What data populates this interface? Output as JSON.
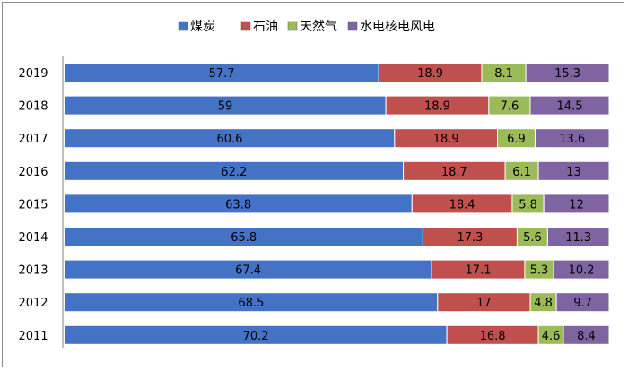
{
  "chart_data": {
    "type": "bar",
    "orientation": "horizontal",
    "stacked": true,
    "categories": [
      "2019",
      "2018",
      "2017",
      "2016",
      "2015",
      "2014",
      "2013",
      "2012",
      "2011"
    ],
    "series": [
      {
        "name": "煤炭",
        "color": "#4472c4",
        "values": [
          57.7,
          59,
          60.6,
          62.2,
          63.8,
          65.8,
          67.4,
          68.5,
          70.2
        ]
      },
      {
        "name": "石油",
        "color": "#c0504d",
        "values": [
          18.9,
          18.9,
          18.9,
          18.7,
          18.4,
          17.3,
          17.1,
          17,
          16.8
        ]
      },
      {
        "name": "天然气",
        "color": "#9bbb59",
        "values": [
          8.1,
          7.6,
          6.9,
          6.1,
          5.8,
          5.6,
          5.3,
          4.8,
          4.6
        ]
      },
      {
        "name": "水电核电风电",
        "color": "#8064a2",
        "values": [
          15.3,
          14.5,
          13.6,
          13,
          12,
          11.3,
          10.2,
          9.7,
          8.4
        ]
      }
    ],
    "xlim": [
      0,
      100
    ],
    "grid": false,
    "legend_position": "top-center"
  }
}
